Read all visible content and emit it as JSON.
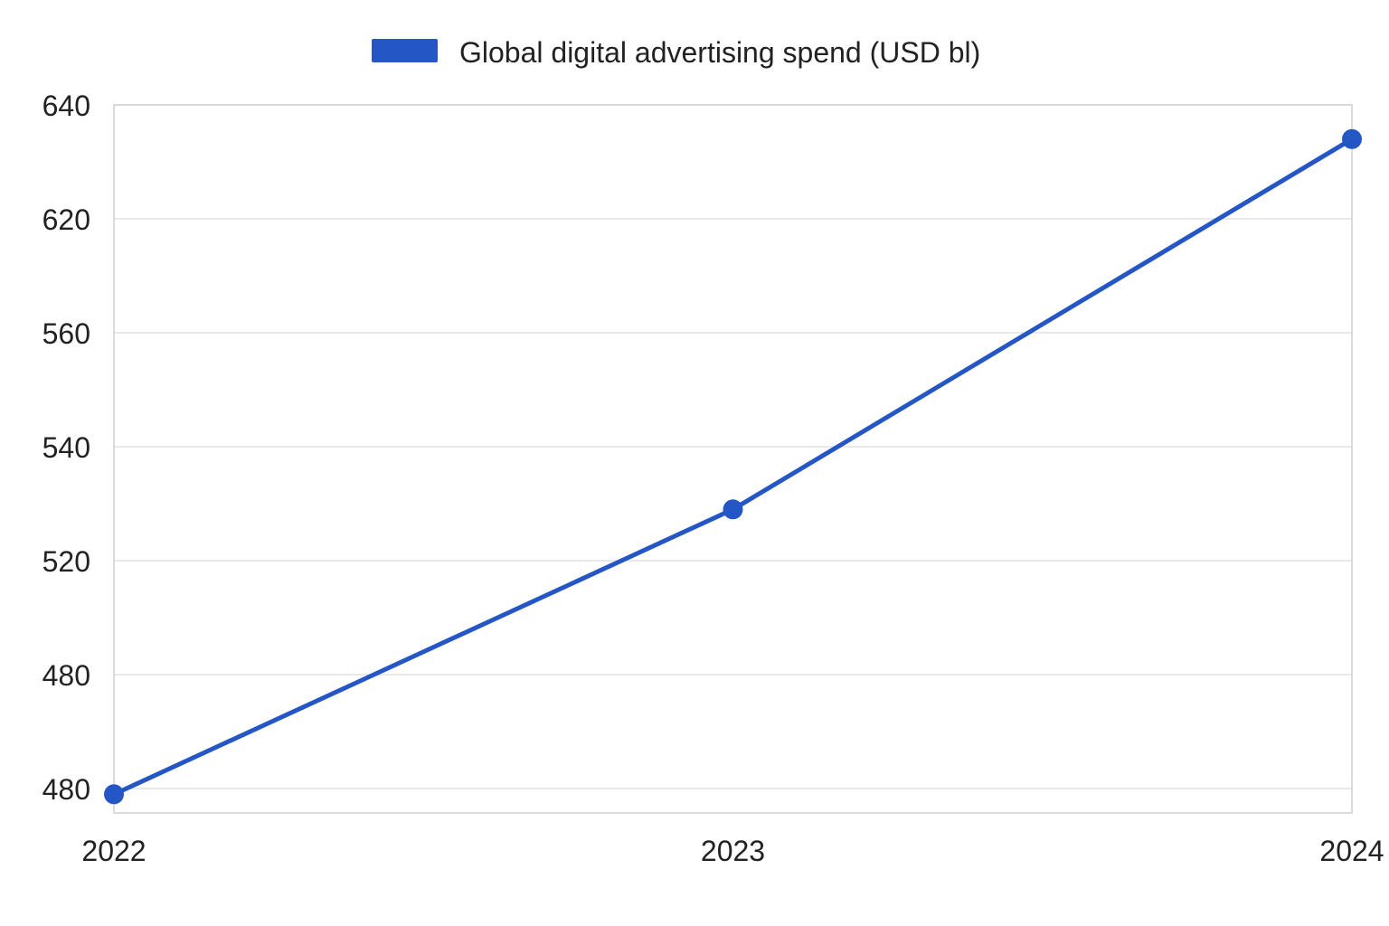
{
  "chart_data": {
    "type": "line",
    "title": "",
    "xlabel": "",
    "ylabel": "",
    "categories": [
      "2022",
      "2023",
      "2024"
    ],
    "y_tick_labels": [
      "640",
      "620",
      "560",
      "540",
      "520",
      "480",
      "480"
    ],
    "series": [
      {
        "name": "Global digital advertising spend (USD bl)",
        "color": "#2457c5",
        "values": [
          479,
          529,
          634
        ]
      }
    ],
    "legend": {
      "position": "top-center",
      "marker": "rectangle"
    },
    "grid": {
      "horizontal": true,
      "vertical": false
    },
    "line_color": "#2457c5",
    "grid_color": "#dcdcdc",
    "axis_color": "#cfcfcf"
  }
}
